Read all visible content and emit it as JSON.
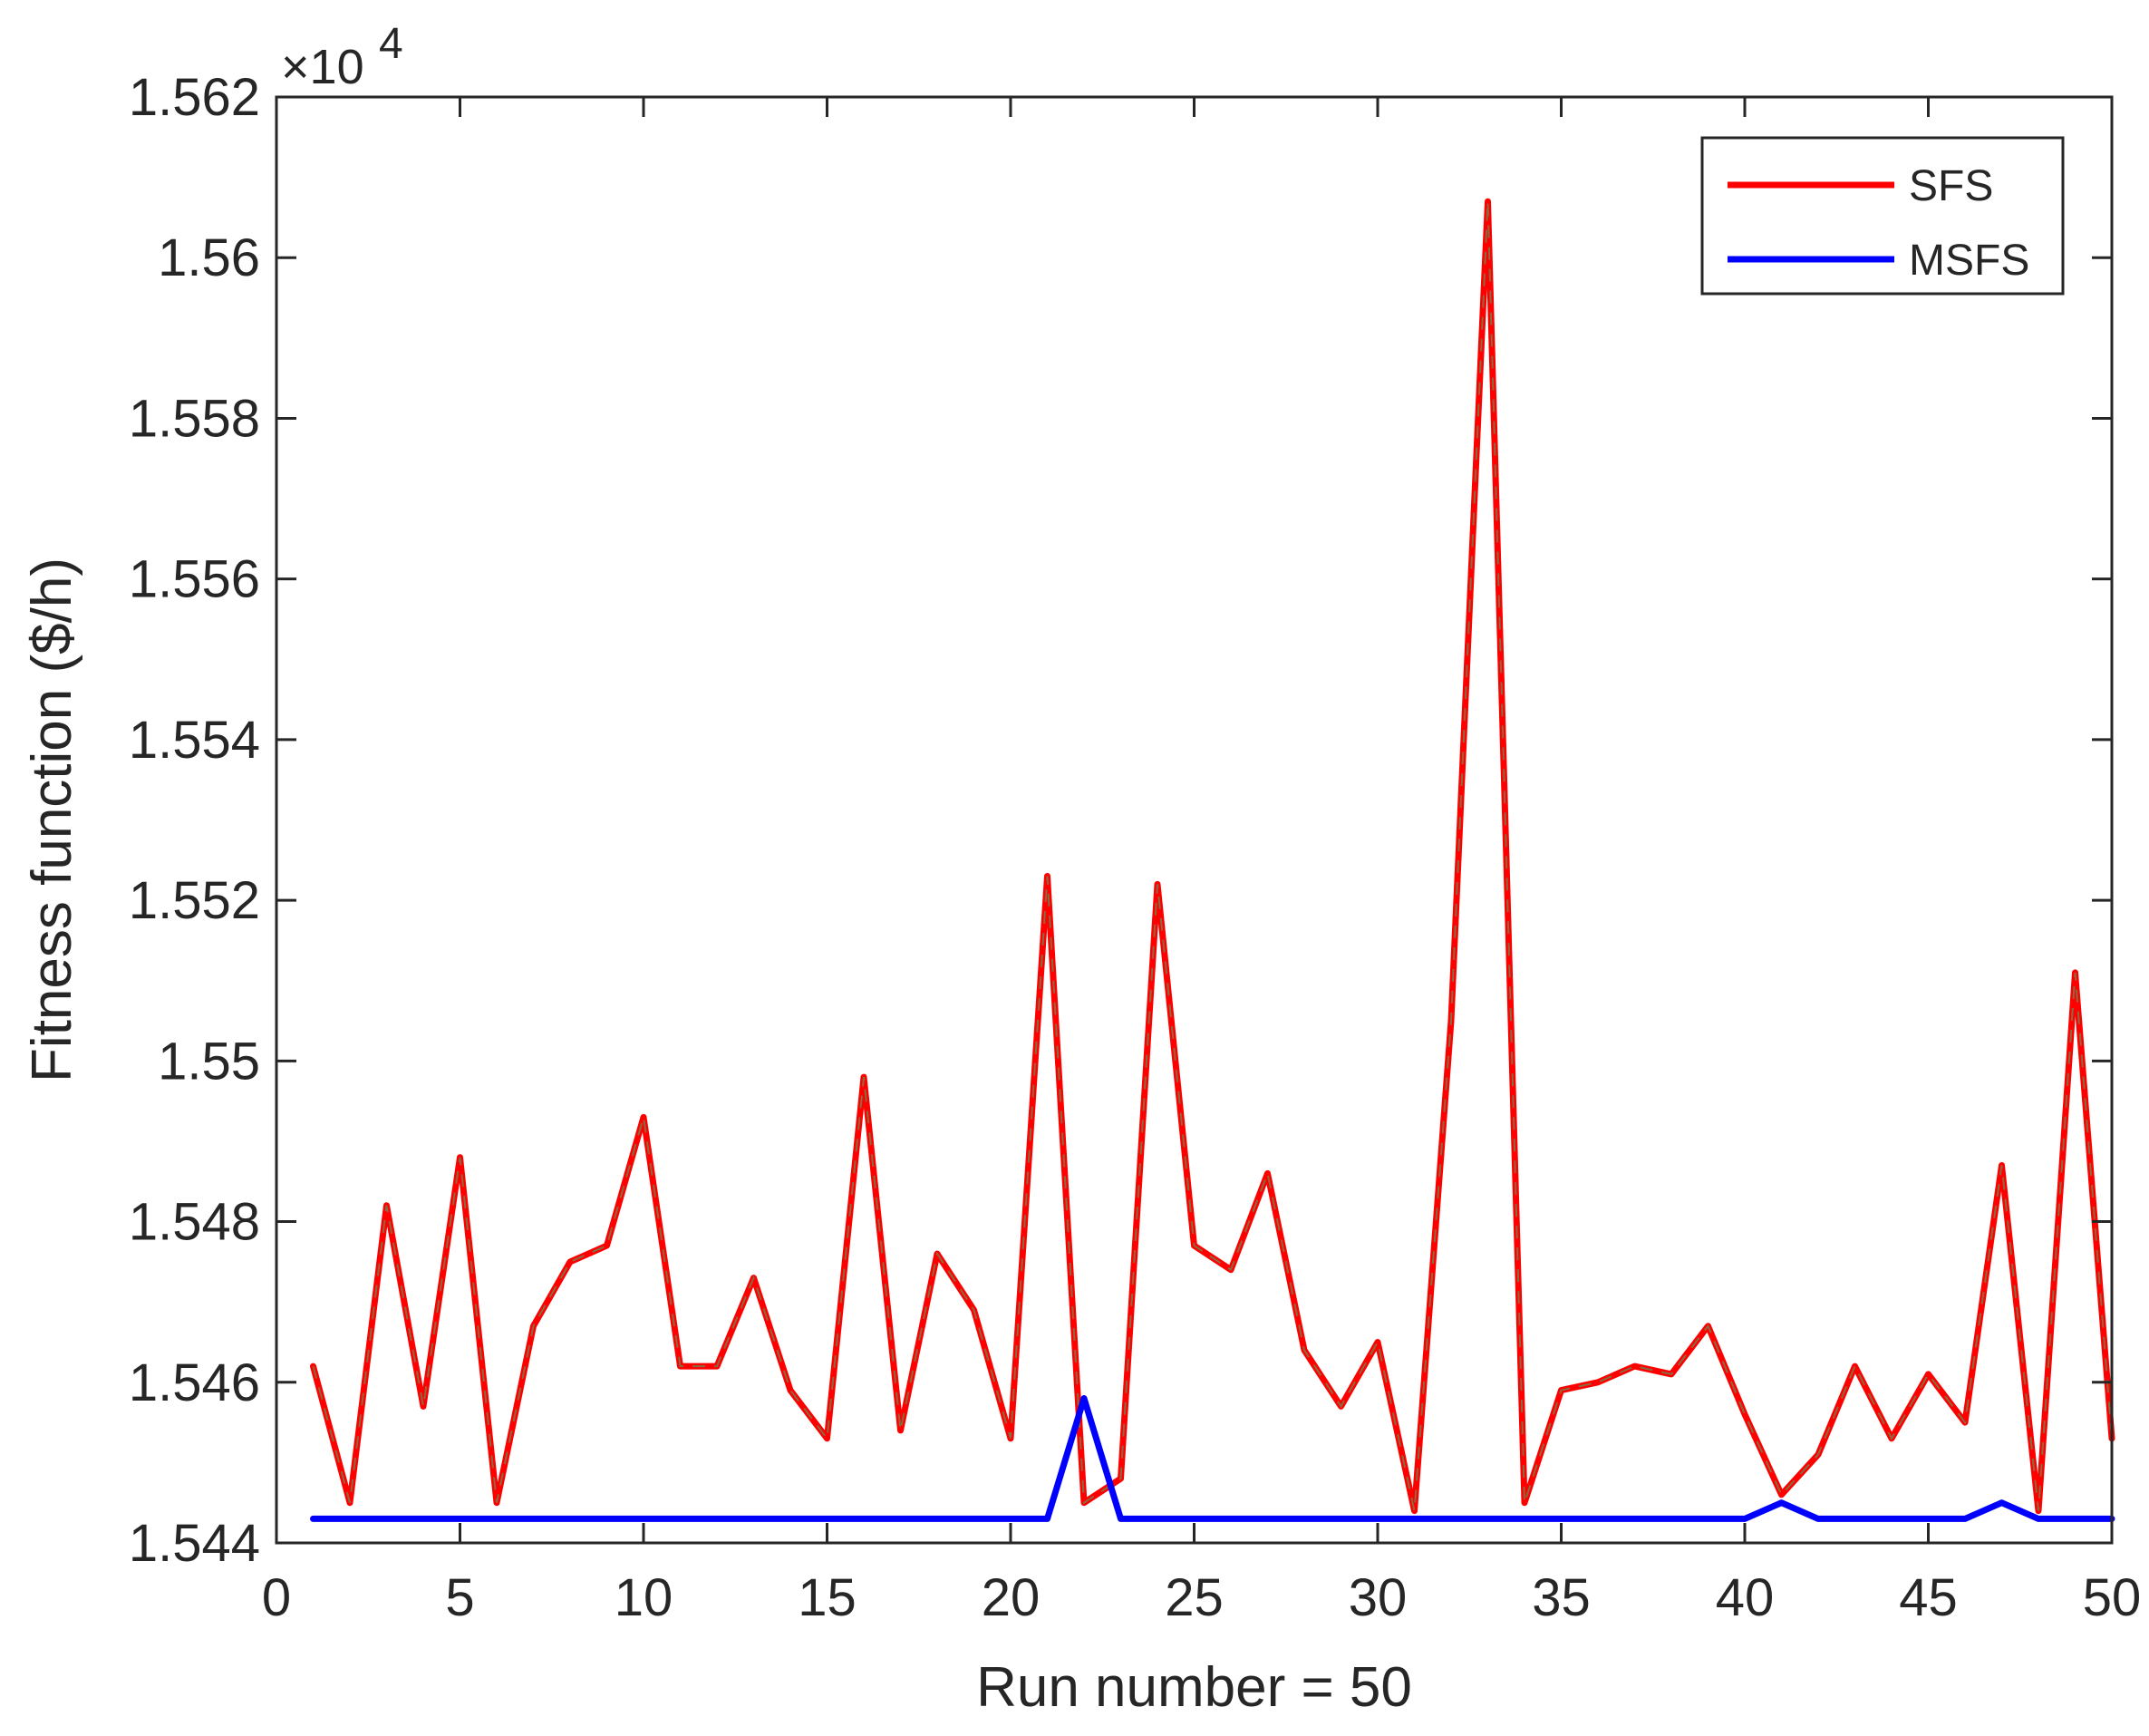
{
  "chart_data": {
    "type": "line",
    "xlabel": "Run number = 50",
    "ylabel": "Fitness function ($/h)",
    "y_multiplier": "×10",
    "y_exponent": "4",
    "xlim": [
      0,
      50
    ],
    "ylim": [
      1.544,
      1.562
    ],
    "xticks": [
      0,
      5,
      10,
      15,
      20,
      25,
      30,
      35,
      40,
      45,
      50
    ],
    "xtick_labels": [
      "0",
      "5",
      "10",
      "15",
      "20",
      "25",
      "30",
      "35",
      "40",
      "45",
      "50"
    ],
    "yticks": [
      1.544,
      1.546,
      1.548,
      1.55,
      1.552,
      1.554,
      1.556,
      1.558,
      1.56,
      1.562
    ],
    "ytick_labels": [
      "1.544",
      "1.546",
      "1.548",
      "1.55",
      "1.552",
      "1.554",
      "1.556",
      "1.558",
      "1.56",
      "1.562"
    ],
    "grid": false,
    "legend_position": "top-right",
    "x": [
      1,
      2,
      3,
      4,
      5,
      6,
      7,
      8,
      9,
      10,
      11,
      12,
      13,
      14,
      15,
      16,
      17,
      18,
      19,
      20,
      21,
      22,
      23,
      24,
      25,
      26,
      27,
      28,
      29,
      30,
      31,
      32,
      33,
      34,
      35,
      36,
      37,
      38,
      39,
      40,
      41,
      42,
      43,
      44,
      45,
      46,
      47,
      48,
      49,
      50
    ],
    "series": [
      {
        "name": "SFS",
        "color": "#ff0000",
        "values": [
          1.5462,
          1.5445,
          1.5482,
          1.5457,
          1.5488,
          1.5445,
          1.5467,
          1.5475,
          1.5477,
          1.5493,
          1.5462,
          1.5462,
          1.5473,
          1.5459,
          1.5453,
          1.5498,
          1.5454,
          1.5476,
          1.5469,
          1.5453,
          1.5523,
          1.5445,
          1.5448,
          1.5522,
          1.5477,
          1.5474,
          1.5486,
          1.5464,
          1.5457,
          1.5465,
          1.5444,
          1.5505,
          1.5607,
          1.5445,
          1.5459,
          1.546,
          1.5462,
          1.5461,
          1.5467,
          1.5456,
          1.5446,
          1.5451,
          1.5462,
          1.5453,
          1.5461,
          1.5455,
          1.5487,
          1.5444,
          1.5511,
          1.5453
        ]
      },
      {
        "name": "MSFS",
        "color": "#0000ff",
        "values": [
          1.5443,
          1.5443,
          1.5443,
          1.5443,
          1.5443,
          1.5443,
          1.5443,
          1.5443,
          1.5443,
          1.5443,
          1.5443,
          1.5443,
          1.5443,
          1.5443,
          1.5443,
          1.5443,
          1.5443,
          1.5443,
          1.5443,
          1.5443,
          1.5443,
          1.5458,
          1.5443,
          1.5443,
          1.5443,
          1.5443,
          1.5443,
          1.5443,
          1.5443,
          1.5443,
          1.5443,
          1.5443,
          1.5443,
          1.5443,
          1.5443,
          1.5443,
          1.5443,
          1.5443,
          1.5443,
          1.5443,
          1.5445,
          1.5443,
          1.5443,
          1.5443,
          1.5443,
          1.5443,
          1.5445,
          1.5443,
          1.5443,
          1.5443
        ]
      }
    ]
  }
}
